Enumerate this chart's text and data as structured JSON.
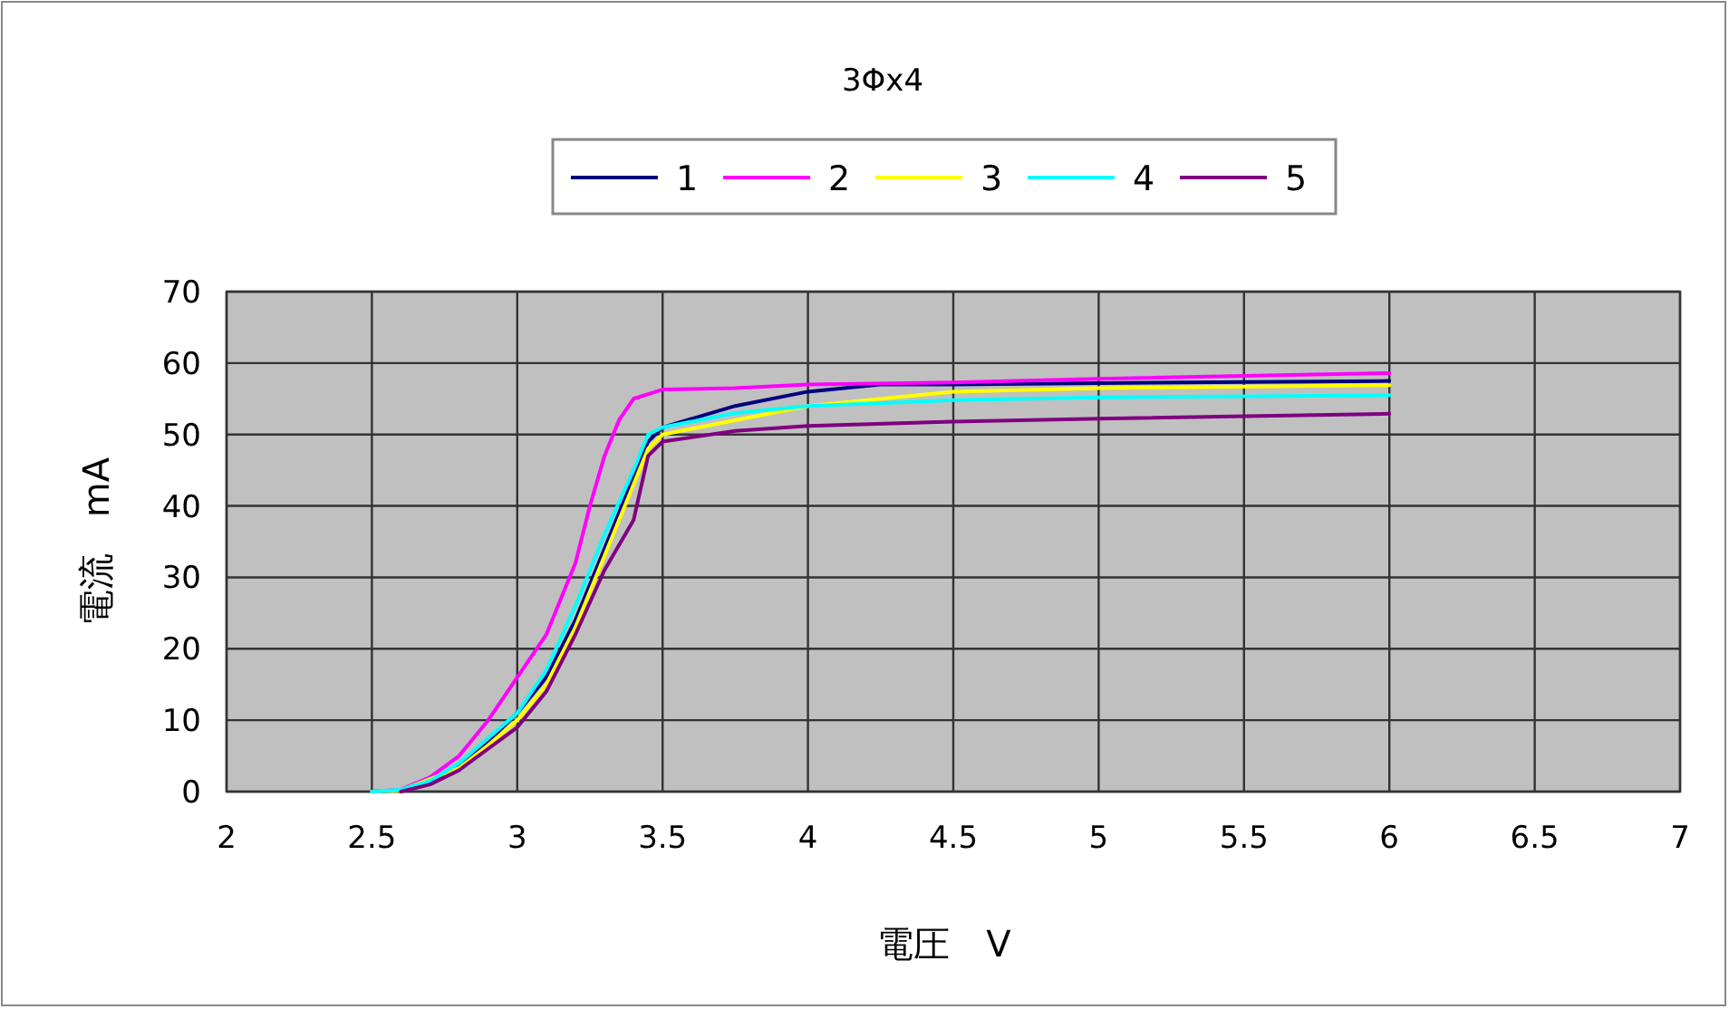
{
  "chart_data": {
    "type": "line",
    "title": "3Φx4",
    "xlabel": "電圧　V",
    "ylabel": "電流　mA",
    "xlim": [
      2,
      7
    ],
    "ylim": [
      0,
      70
    ],
    "xticks": [
      2,
      2.5,
      3,
      3.5,
      4,
      4.5,
      5,
      5.5,
      6,
      6.5,
      7
    ],
    "yticks": [
      0,
      10,
      20,
      30,
      40,
      50,
      60,
      70
    ],
    "grid": true,
    "legend": "top",
    "marker": "none",
    "line_style": "solid",
    "series": [
      {
        "name": "1",
        "color": "#000080",
        "x": [
          2.5,
          2.6,
          2.7,
          2.8,
          2.9,
          3.0,
          3.1,
          3.2,
          3.3,
          3.4,
          3.45,
          3.5,
          3.75,
          4,
          4.25,
          4.5,
          5,
          6
        ],
        "values": [
          0,
          0.2,
          1.3,
          3.5,
          7,
          11,
          16,
          24,
          34,
          44,
          49,
          51,
          54,
          56,
          57,
          57,
          57.2,
          57.5
        ]
      },
      {
        "name": "2",
        "color": "#ff00ff",
        "x": [
          2.5,
          2.6,
          2.7,
          2.8,
          2.9,
          3.0,
          3.1,
          3.2,
          3.25,
          3.3,
          3.35,
          3.4,
          3.5,
          3.75,
          4,
          4.5,
          5,
          6
        ],
        "values": [
          0,
          0.3,
          2,
          5,
          10,
          16,
          22,
          32,
          40,
          47,
          52,
          55,
          56.3,
          56.5,
          57,
          57.3,
          57.8,
          58.6
        ]
      },
      {
        "name": "3",
        "color": "#ffff00",
        "x": [
          2.5,
          2.6,
          2.8,
          2.9,
          3.0,
          3.1,
          3.2,
          3.3,
          3.4,
          3.45,
          3.5,
          3.75,
          4,
          4.5,
          5,
          6
        ],
        "values": [
          0,
          0.2,
          3.3,
          6.5,
          10,
          15,
          23,
          33,
          43,
          48,
          50,
          52,
          54,
          56,
          56.5,
          56.9
        ]
      },
      {
        "name": "4",
        "color": "#00ffff",
        "x": [
          2.5,
          2.6,
          2.7,
          2.8,
          2.9,
          3.0,
          3.1,
          3.2,
          3.3,
          3.4,
          3.45,
          3.5,
          3.75,
          4,
          4.5,
          5,
          6
        ],
        "values": [
          0,
          0.3,
          1.5,
          4,
          7.5,
          11,
          17,
          26,
          36,
          45,
          50,
          51,
          53,
          54,
          54.8,
          55.2,
          55.5
        ]
      },
      {
        "name": "5",
        "color": "#800080",
        "x": [
          2.6,
          2.7,
          2.8,
          2.9,
          3.0,
          3.1,
          3.2,
          3.3,
          3.4,
          3.45,
          3.5,
          3.75,
          4,
          4.5,
          5,
          6
        ],
        "values": [
          0,
          1,
          3,
          6,
          9,
          14,
          22,
          31,
          38,
          47,
          49,
          50.5,
          51.2,
          51.8,
          52.2,
          52.9
        ]
      }
    ]
  }
}
